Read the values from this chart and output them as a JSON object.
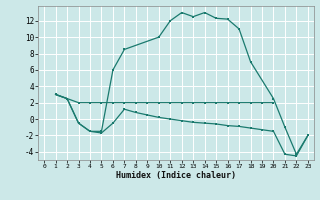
{
  "xlabel": "Humidex (Indice chaleur)",
  "bg_color": "#cce8e8",
  "line_color": "#1a7a6e",
  "grid_color": "#ffffff",
  "xlim": [
    -0.5,
    23.5
  ],
  "ylim": [
    -5.0,
    13.8
  ],
  "xticks": [
    0,
    1,
    2,
    3,
    4,
    5,
    6,
    7,
    8,
    9,
    10,
    11,
    12,
    13,
    14,
    15,
    16,
    17,
    18,
    19,
    20,
    21,
    22,
    23
  ],
  "yticks": [
    -4,
    -2,
    0,
    2,
    4,
    6,
    8,
    10,
    12
  ],
  "line1_x": [
    1,
    2,
    3,
    4,
    5,
    6,
    7,
    8,
    9,
    10,
    11,
    12,
    13,
    14,
    15,
    16,
    17,
    18,
    19,
    20
  ],
  "line1_y": [
    3.0,
    2.5,
    2.0,
    2.0,
    2.0,
    2.0,
    2.0,
    2.0,
    2.0,
    2.0,
    2.0,
    2.0,
    2.0,
    2.0,
    2.0,
    2.0,
    2.0,
    2.0,
    2.0,
    2.0
  ],
  "line2_x": [
    1,
    2,
    3,
    4,
    5,
    6,
    7,
    10,
    11,
    12,
    13,
    14,
    15,
    16,
    17,
    18,
    20,
    21,
    22,
    23
  ],
  "line2_y": [
    3.0,
    2.5,
    -0.5,
    -1.5,
    -1.5,
    6.0,
    8.5,
    10.0,
    12.0,
    13.0,
    12.5,
    13.0,
    12.3,
    12.2,
    11.0,
    7.0,
    2.5,
    -1.0,
    -4.3,
    -2.0
  ],
  "line3_x": [
    1,
    2,
    3,
    4,
    5,
    6,
    7,
    8,
    9,
    10,
    11,
    12,
    13,
    14,
    15,
    16,
    17,
    18,
    19,
    20,
    21,
    22,
    23
  ],
  "line3_y": [
    3.0,
    2.5,
    -0.5,
    -1.5,
    -1.7,
    -0.5,
    1.2,
    0.8,
    0.5,
    0.2,
    0.0,
    -0.2,
    -0.4,
    -0.5,
    -0.6,
    -0.8,
    -0.9,
    -1.1,
    -1.3,
    -1.5,
    -4.3,
    -4.5,
    -2.0
  ]
}
